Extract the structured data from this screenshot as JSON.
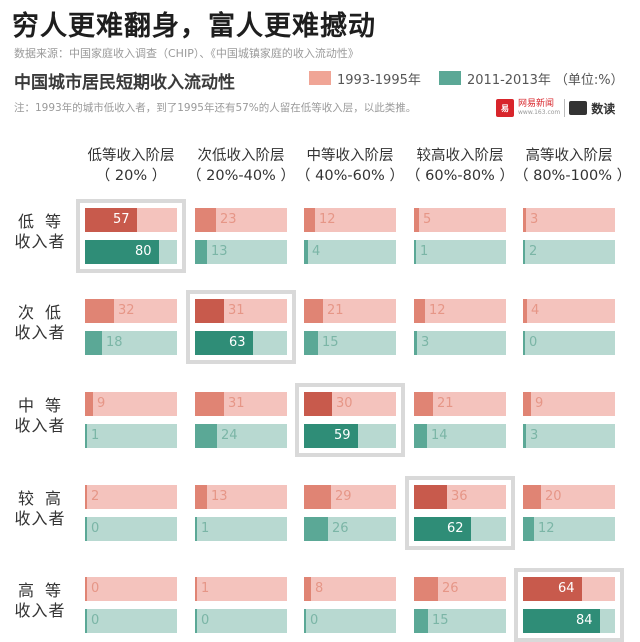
{
  "title": "穷人更难翻身，富人更难撼动",
  "source": "数据来源：中国家庭收入调查（CHIP）、《中国城镇家庭的收入流动性》",
  "subtitle": "中国城市居民短期收入流动性",
  "legend": {
    "series1": "1993-1995年",
    "series2": "2011-2013年",
    "unit": "（单位:%）"
  },
  "note": "注：1993年的城市低收入者，到了1995年还有57%的人留在低等收入层，以此类推。",
  "logo": {
    "brand": "网易新闻",
    "url": "www.163.com",
    "section": "数读"
  },
  "colors": {
    "series1": "#e08474",
    "series1_light": "#f4c3bd",
    "series2": "#5ba896",
    "series2_light": "#b8d9d1",
    "highlight_border": "#d9d9d9"
  },
  "columns": [
    {
      "name": "低等收入阶层",
      "range": "（ 20% ）"
    },
    {
      "name": "次低收入阶层",
      "range": "（ 20%-40% ）"
    },
    {
      "name": "中等收入阶层",
      "range": "（ 40%-60% ）"
    },
    {
      "name": "较高收入阶层",
      "range": "（ 60%-80% ）"
    },
    {
      "name": "高等收入阶层",
      "range": "（ 80%-100% ）"
    }
  ],
  "rows": [
    {
      "l1a": "低",
      "l1b": "等",
      "l2": "收入者"
    },
    {
      "l1a": "次",
      "l1b": "低",
      "l2": "收入者"
    },
    {
      "l1a": "中",
      "l1b": "等",
      "l2": "收入者"
    },
    {
      "l1a": "较",
      "l1b": "高",
      "l2": "收入者"
    },
    {
      "l1a": "高",
      "l1b": "等",
      "l2": "收入者"
    }
  ],
  "chart_data": {
    "type": "bar",
    "title": "中国城市居民短期收入流动性",
    "unit": "%",
    "row_categories": [
      "低等收入者",
      "次低收入者",
      "中等收入者",
      "较高收入者",
      "高等收入者"
    ],
    "column_categories": [
      "低等收入阶层（20%）",
      "次低收入阶层（20%-40%）",
      "中等收入阶层（40%-60%）",
      "较高收入阶层（60%-80%）",
      "高等收入阶层（80%-100%）"
    ],
    "series": [
      {
        "name": "1993-1995年",
        "values": [
          [
            57,
            23,
            12,
            5,
            3
          ],
          [
            32,
            31,
            21,
            12,
            4
          ],
          [
            9,
            31,
            30,
            21,
            9
          ],
          [
            2,
            13,
            29,
            36,
            20
          ],
          [
            0,
            1,
            8,
            26,
            64
          ]
        ]
      },
      {
        "name": "2011-2013年",
        "values": [
          [
            80,
            13,
            4,
            1,
            2
          ],
          [
            18,
            63,
            15,
            3,
            0
          ],
          [
            1,
            24,
            59,
            14,
            3
          ],
          [
            0,
            1,
            26,
            62,
            12
          ],
          [
            0,
            0,
            0,
            15,
            84
          ]
        ]
      }
    ],
    "highlighted_cells": "diagonal",
    "xlim": [
      0,
      100
    ]
  }
}
